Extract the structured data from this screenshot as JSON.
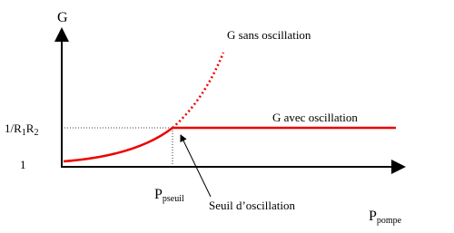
{
  "axes": {
    "y_label": "G",
    "x_label": {
      "main": "P",
      "sub": "pompe"
    }
  },
  "levels": {
    "threshold": {
      "main": "1/R",
      "sub1": "1",
      "mid": "R",
      "sub2": "2"
    },
    "base": "1"
  },
  "threshold_power": {
    "main": "P",
    "sub": "pseuil"
  },
  "annotations": {
    "without_oscillation": "G sans oscillation",
    "with_oscillation": "G avec oscillation",
    "threshold": "Seuil d’oscillation"
  }
}
